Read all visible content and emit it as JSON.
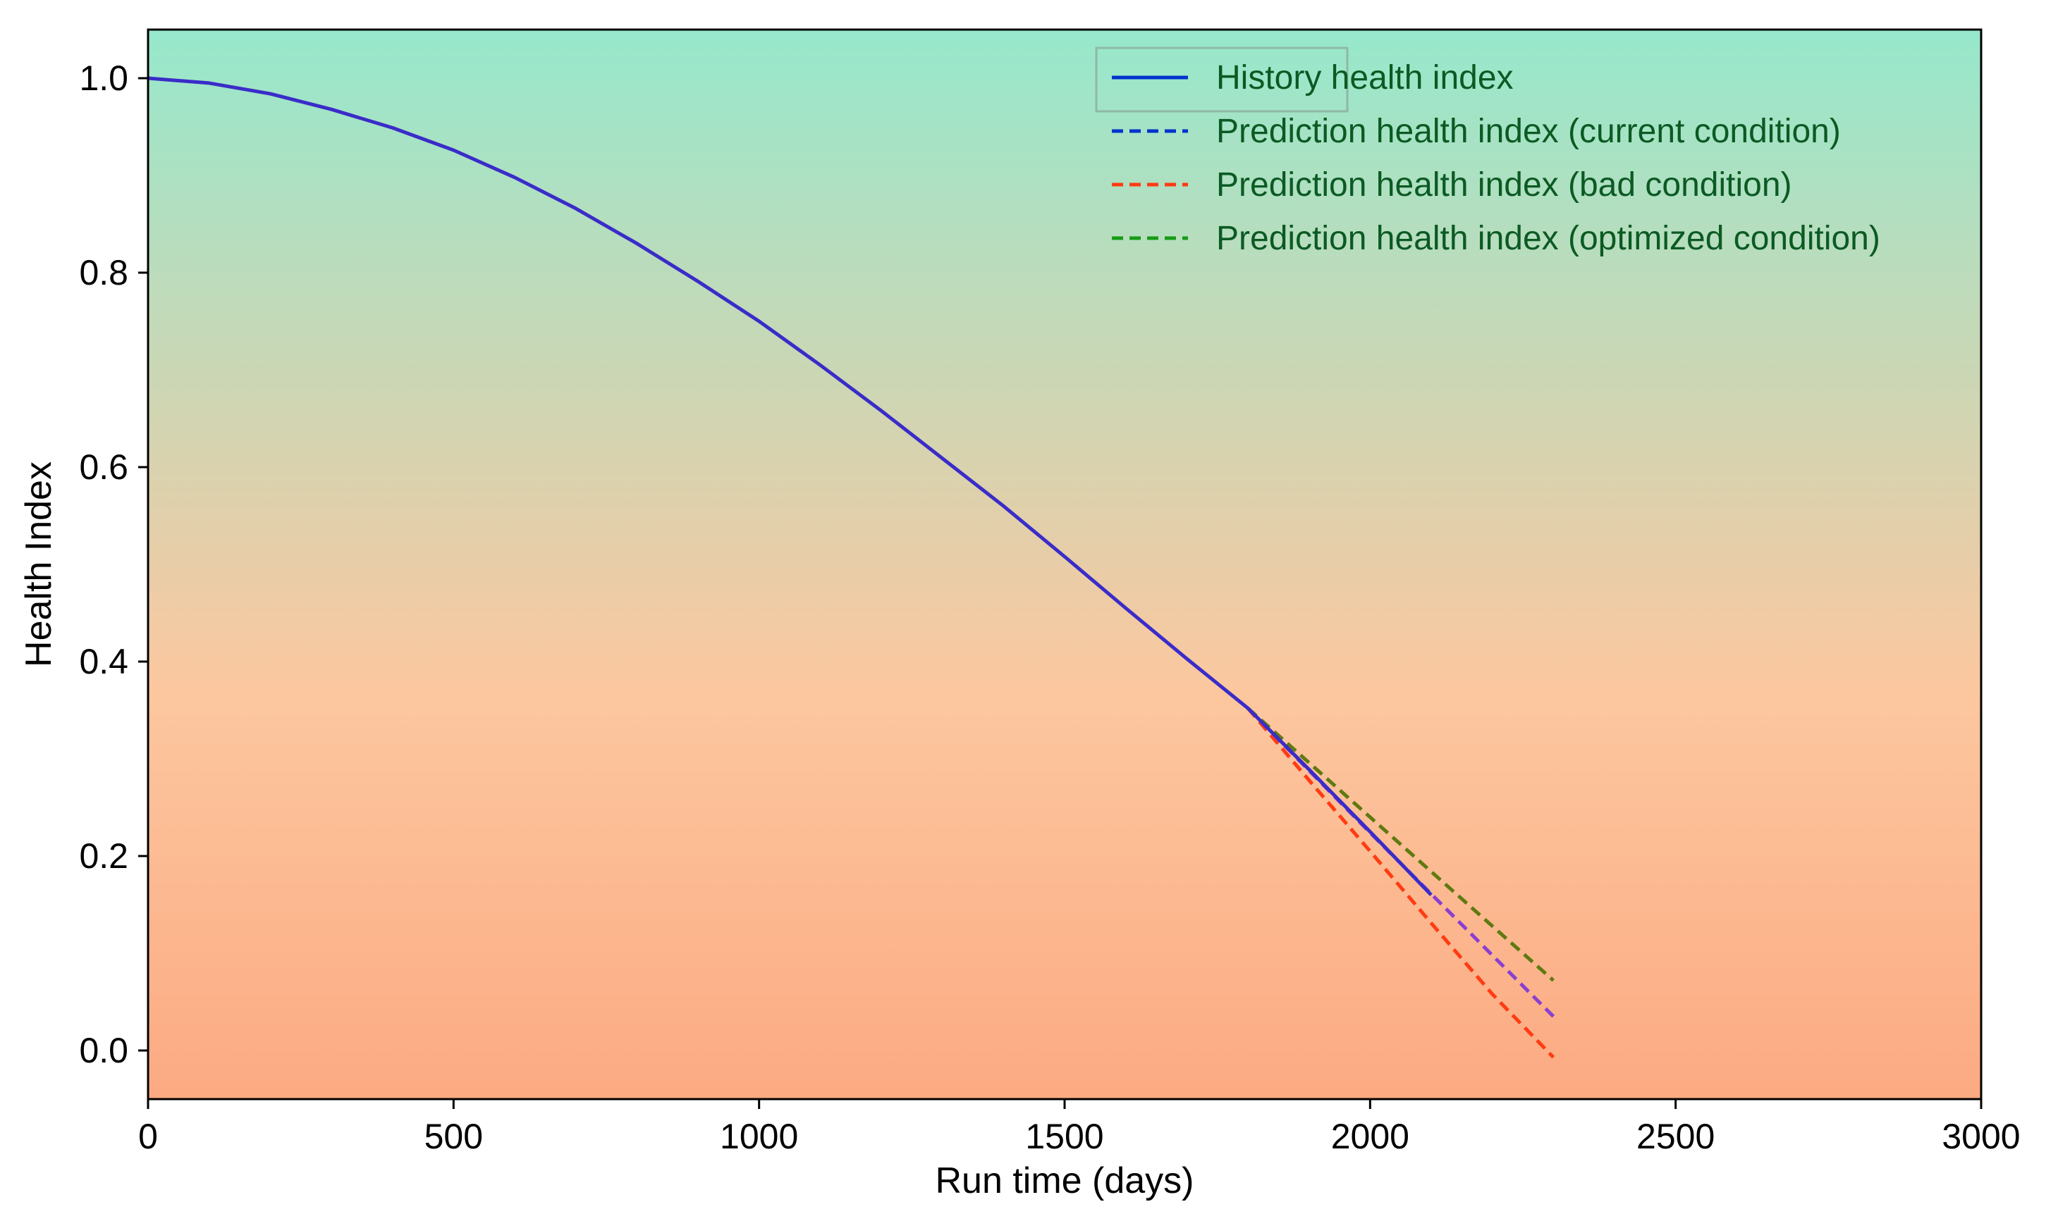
{
  "chart_data": {
    "type": "line",
    "title": "",
    "xlabel": "Run time (days)",
    "ylabel": "Health Index",
    "xlim": [
      0,
      3000
    ],
    "ylim": [
      -0.05,
      1.05
    ],
    "xticks": [
      0,
      500,
      1000,
      1500,
      2000,
      2500,
      3000
    ],
    "yticks": [
      0.0,
      0.2,
      0.4,
      0.6,
      0.8,
      1.0
    ],
    "xtick_labels": [
      "0",
      "500",
      "1000",
      "1500",
      "2000",
      "2500",
      "3000"
    ],
    "ytick_labels": [
      "0.0",
      "0.2",
      "0.4",
      "0.6",
      "0.8",
      "1.0"
    ],
    "grid": false,
    "legend_position": "top-right",
    "background_gradient": {
      "top": "#96e8cc",
      "middle": "#fcc79f",
      "bottom": "#fcaa82"
    },
    "series": [
      {
        "name": "History health index",
        "style": "solid",
        "color": "#0033cc",
        "x": [
          0,
          100,
          200,
          300,
          400,
          500,
          600,
          700,
          800,
          900,
          1000,
          1100,
          1200,
          1300,
          1400,
          1500,
          1600,
          1700,
          1800,
          1900,
          2000,
          2100
        ],
        "y": [
          1.0,
          0.995,
          0.984,
          0.968,
          0.949,
          0.926,
          0.898,
          0.866,
          0.83,
          0.791,
          0.75,
          0.705,
          0.658,
          0.609,
          0.56,
          0.508,
          0.455,
          0.403,
          0.352,
          0.289,
          0.225,
          0.16
        ]
      },
      {
        "name": "Prediction health index (current condition)",
        "style": "dashed",
        "color": "#0033cc",
        "x": [
          1800,
          1900,
          2000,
          2100,
          2200,
          2300
        ],
        "y": [
          0.352,
          0.288,
          0.224,
          0.161,
          0.098,
          0.035
        ]
      },
      {
        "name": "Prediction health index (bad condition)",
        "style": "dashed",
        "color": "#ff3b12",
        "x": [
          1800,
          1900,
          2000,
          2100,
          2200,
          2300
        ],
        "y": [
          0.352,
          0.278,
          0.205,
          0.131,
          0.058,
          -0.007
        ]
      },
      {
        "name": "Prediction health index (optimized condition)",
        "style": "dashed",
        "color": "#169c16",
        "x": [
          1800,
          1900,
          2000,
          2100,
          2200,
          2300
        ],
        "y": [
          0.352,
          0.296,
          0.24,
          0.184,
          0.128,
          0.072
        ]
      }
    ]
  }
}
